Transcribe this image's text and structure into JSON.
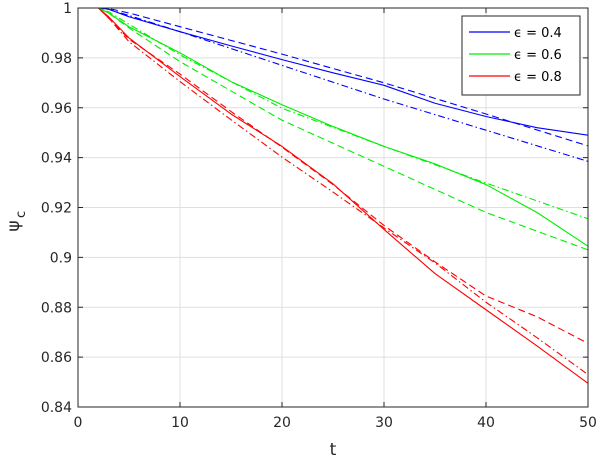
{
  "chart_data": {
    "type": "line",
    "xlabel": "t",
    "ylabel_main": "ψ",
    "ylabel_sub": "c",
    "xlim": [
      0,
      50
    ],
    "ylim": [
      0.84,
      1.0
    ],
    "xticks": [
      0,
      10,
      20,
      30,
      40,
      50
    ],
    "xtick_labels": [
      "0",
      "10",
      "20",
      "30",
      "40",
      "50"
    ],
    "yticks": [
      0.84,
      0.86,
      0.88,
      0.9,
      0.92,
      0.94,
      0.96,
      0.98,
      1.0
    ],
    "ytick_labels": [
      "0.84",
      "0.86",
      "0.88",
      "0.9",
      "0.92",
      "0.94",
      "0.96",
      "0.98",
      "1"
    ],
    "grid": true,
    "legend_position": "top-right",
    "legend": [
      {
        "label": "ϵ = 0.4",
        "color": "#0000ff"
      },
      {
        "label": "ϵ = 0.6",
        "color": "#00ee00"
      },
      {
        "label": "ϵ = 0.8",
        "color": "#ff0000"
      }
    ],
    "series": [
      {
        "color": "#0000ff",
        "style": "solid",
        "x": [
          0,
          2,
          3,
          5,
          10,
          15,
          20,
          25,
          30,
          35,
          40,
          45,
          50
        ],
        "y": [
          1.0,
          1.0,
          0.9995,
          0.9965,
          0.9905,
          0.9848,
          0.9793,
          0.974,
          0.969,
          0.9618,
          0.9565,
          0.952,
          0.949
        ]
      },
      {
        "color": "#0000ff",
        "style": "dashed",
        "x": [
          0,
          2,
          3,
          5,
          10,
          20,
          30,
          40,
          50
        ],
        "y": [
          1.0,
          1.0,
          0.9998,
          0.998,
          0.9925,
          0.9815,
          0.97,
          0.9575,
          0.9447
        ]
      },
      {
        "color": "#0000ff",
        "style": "dashdot",
        "x": [
          0,
          2,
          3,
          5,
          10,
          20,
          30,
          40,
          50
        ],
        "y": [
          1.0,
          1.0,
          0.9995,
          0.997,
          0.9905,
          0.977,
          0.9635,
          0.951,
          0.9385
        ]
      },
      {
        "color": "#00ee00",
        "style": "solid",
        "x": [
          0,
          2,
          3,
          5,
          10,
          15,
          20,
          25,
          30,
          35,
          40,
          45,
          50
        ],
        "y": [
          1.0,
          1.0,
          0.998,
          0.9925,
          0.982,
          0.9705,
          0.9612,
          0.9525,
          0.9445,
          0.9375,
          0.9292,
          0.918,
          0.9045
        ]
      },
      {
        "color": "#00ee00",
        "style": "dashed",
        "x": [
          0,
          2,
          3,
          5,
          10,
          20,
          30,
          40,
          50
        ],
        "y": [
          1.0,
          1.0,
          0.998,
          0.992,
          0.9785,
          0.955,
          0.9365,
          0.918,
          0.903
        ]
      },
      {
        "color": "#00ee00",
        "style": "dashdot",
        "x": [
          0,
          2,
          3,
          5,
          10,
          20,
          30,
          40,
          50
        ],
        "y": [
          1.0,
          1.0,
          0.9985,
          0.9935,
          0.9812,
          0.9598,
          0.9445,
          0.9298,
          0.9155
        ]
      },
      {
        "color": "#ff0000",
        "style": "solid",
        "x": [
          0,
          2,
          3,
          5,
          10,
          15,
          20,
          25,
          30,
          35,
          40,
          45,
          50
        ],
        "y": [
          1.0,
          1.0,
          0.9965,
          0.988,
          0.9725,
          0.9575,
          0.9445,
          0.9295,
          0.9112,
          0.8935,
          0.879,
          0.8645,
          0.8495
        ]
      },
      {
        "color": "#ff0000",
        "style": "dashed",
        "x": [
          0,
          2,
          3,
          5,
          10,
          15,
          20,
          25,
          30,
          35,
          40,
          45,
          50
        ],
        "y": [
          1.0,
          1.0,
          0.996,
          0.9875,
          0.9735,
          0.9585,
          0.9442,
          0.9292,
          0.9128,
          0.8982,
          0.8845,
          0.8762,
          0.8655
        ]
      },
      {
        "color": "#ff0000",
        "style": "dashdot",
        "x": [
          0,
          2,
          3,
          5,
          10,
          15,
          20,
          25,
          30,
          35,
          40,
          45,
          50
        ],
        "y": [
          1.0,
          1.0,
          0.996,
          0.9865,
          0.9705,
          0.9552,
          0.9402,
          0.9262,
          0.9118,
          0.8978,
          0.882,
          0.8678,
          0.853
        ]
      }
    ]
  }
}
